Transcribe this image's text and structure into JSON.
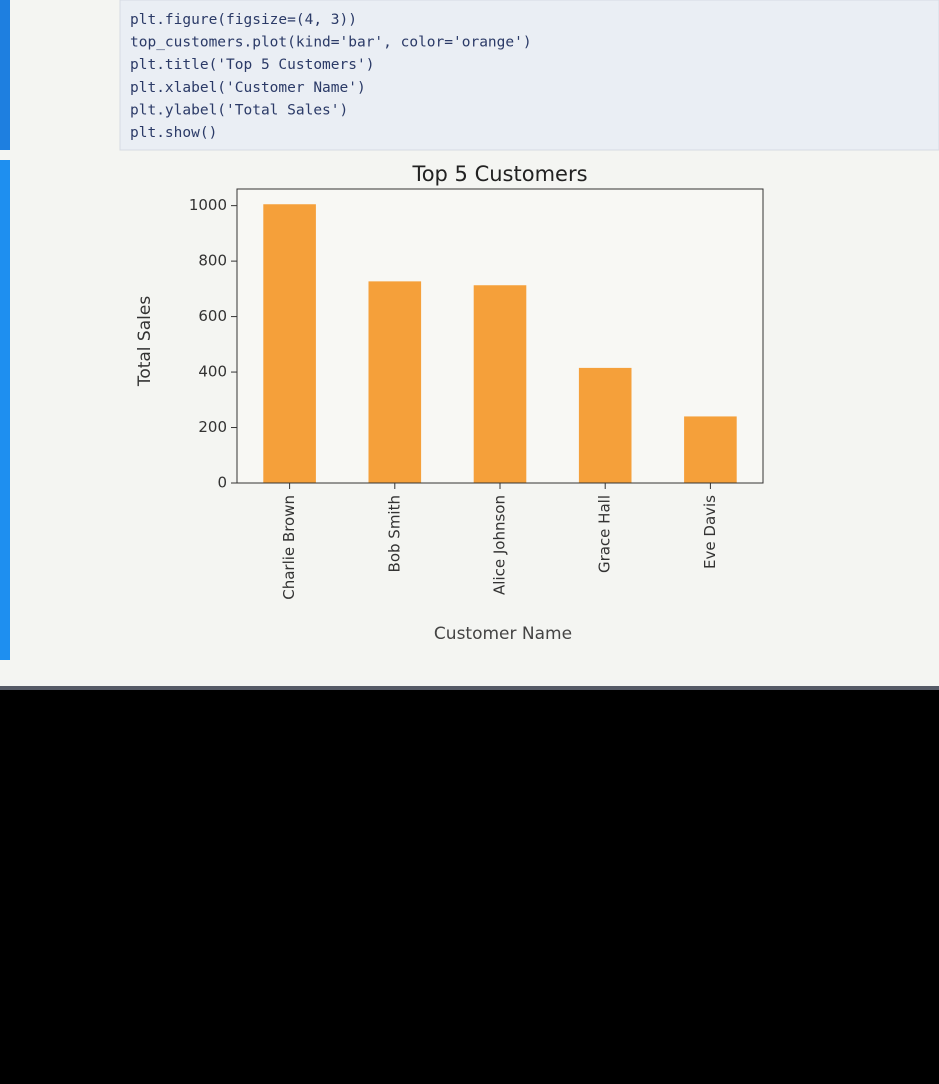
{
  "code": {
    "lines": [
      "plt.figure(figsize=(4, 3))",
      "top_customers.plot(kind='bar', color='orange')",
      "plt.title('Top 5 Customers')",
      "plt.xlabel('Customer Name')",
      "plt.ylabel('Total Sales')",
      "plt.show()"
    ]
  },
  "chart_data": {
    "type": "bar",
    "title": "Top 5 Customers",
    "x_label": "Customer Name",
    "y_label": "Total Sales",
    "categories": [
      "Charlie Brown",
      "Bob Smith",
      "Alice Johnson",
      "Grace Hall",
      "Eve Davis"
    ],
    "values": [
      1005,
      727,
      713,
      415,
      240
    ],
    "color": "#f5a03a",
    "ylim": [
      0,
      1060
    ],
    "yticks": [
      0,
      200,
      400,
      600,
      800,
      1000
    ]
  }
}
